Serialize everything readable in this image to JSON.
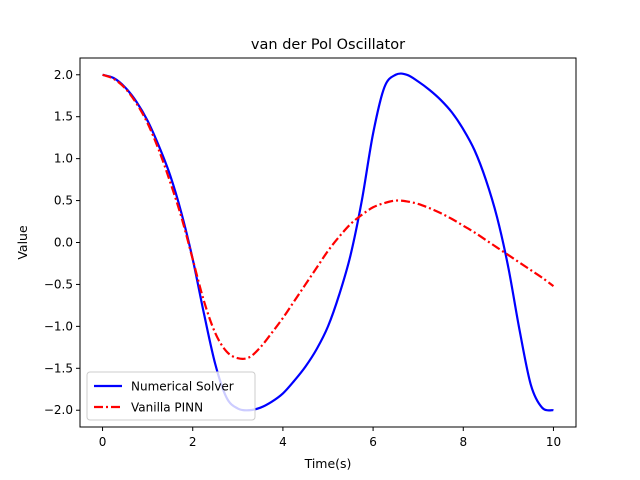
{
  "chart_data": {
    "type": "line",
    "title": "van der Pol Oscillator",
    "xlabel": "Time(s)",
    "ylabel": "Value",
    "xlim": [
      -0.5,
      10.5
    ],
    "ylim": [
      -2.2,
      2.2
    ],
    "xticks": [
      0,
      2,
      4,
      6,
      8,
      10
    ],
    "xtick_labels": [
      "0",
      "2",
      "4",
      "6",
      "8",
      "10"
    ],
    "yticks": [
      2.0,
      1.5,
      1.0,
      0.5,
      0.0,
      -0.5,
      -1.0,
      -1.5,
      -2.0
    ],
    "ytick_labels": [
      "2.0",
      "1.5",
      "1.0",
      "0.5",
      "0.0",
      "−0.5",
      "−1.0",
      "−1.5",
      "−2.0"
    ],
    "grid": false,
    "legend_position": "lower-left",
    "series": [
      {
        "name": "Numerical Solver",
        "color": "#0000ff",
        "line_style": "solid",
        "x": [
          0,
          0.25,
          0.5,
          0.75,
          1.0,
          1.25,
          1.5,
          1.75,
          2.0,
          2.25,
          2.5,
          2.75,
          3.0,
          3.25,
          3.5,
          3.75,
          4.0,
          4.25,
          4.5,
          4.75,
          5.0,
          5.25,
          5.5,
          5.75,
          6.0,
          6.25,
          6.5,
          6.75,
          7.0,
          7.25,
          7.5,
          7.75,
          8.0,
          8.25,
          8.5,
          8.75,
          9.0,
          9.25,
          9.5,
          9.75,
          10.0
        ],
        "y": [
          2.0,
          1.96,
          1.85,
          1.68,
          1.45,
          1.15,
          0.8,
          0.35,
          -0.2,
          -0.85,
          -1.45,
          -1.85,
          -1.98,
          -2.0,
          -1.97,
          -1.9,
          -1.8,
          -1.65,
          -1.48,
          -1.27,
          -1.0,
          -0.62,
          -0.15,
          0.5,
          1.3,
          1.85,
          2.0,
          2.0,
          1.92,
          1.82,
          1.7,
          1.55,
          1.35,
          1.1,
          0.75,
          0.3,
          -0.3,
          -1.05,
          -1.7,
          -1.97,
          -2.0
        ]
      },
      {
        "name": "Vanilla PINN",
        "color": "#ff0000",
        "line_style": "dashdot",
        "x": [
          0,
          0.25,
          0.5,
          0.75,
          1.0,
          1.25,
          1.5,
          1.75,
          2.0,
          2.25,
          2.5,
          2.75,
          3.0,
          3.25,
          3.5,
          3.75,
          4.0,
          4.25,
          4.5,
          4.75,
          5.0,
          5.25,
          5.5,
          5.75,
          6.0,
          6.25,
          6.5,
          6.75,
          7.0,
          7.25,
          7.5,
          7.75,
          8.0,
          8.25,
          8.5,
          8.75,
          9.0,
          9.25,
          9.5,
          9.75,
          10.0
        ],
        "y": [
          2.0,
          1.95,
          1.84,
          1.66,
          1.42,
          1.1,
          0.72,
          0.3,
          -0.2,
          -0.7,
          -1.08,
          -1.3,
          -1.38,
          -1.37,
          -1.25,
          -1.08,
          -0.9,
          -0.7,
          -0.5,
          -0.3,
          -0.1,
          0.07,
          0.22,
          0.33,
          0.42,
          0.47,
          0.5,
          0.49,
          0.46,
          0.41,
          0.35,
          0.28,
          0.2,
          0.12,
          0.03,
          -0.06,
          -0.15,
          -0.24,
          -0.33,
          -0.42,
          -0.52
        ]
      }
    ]
  }
}
